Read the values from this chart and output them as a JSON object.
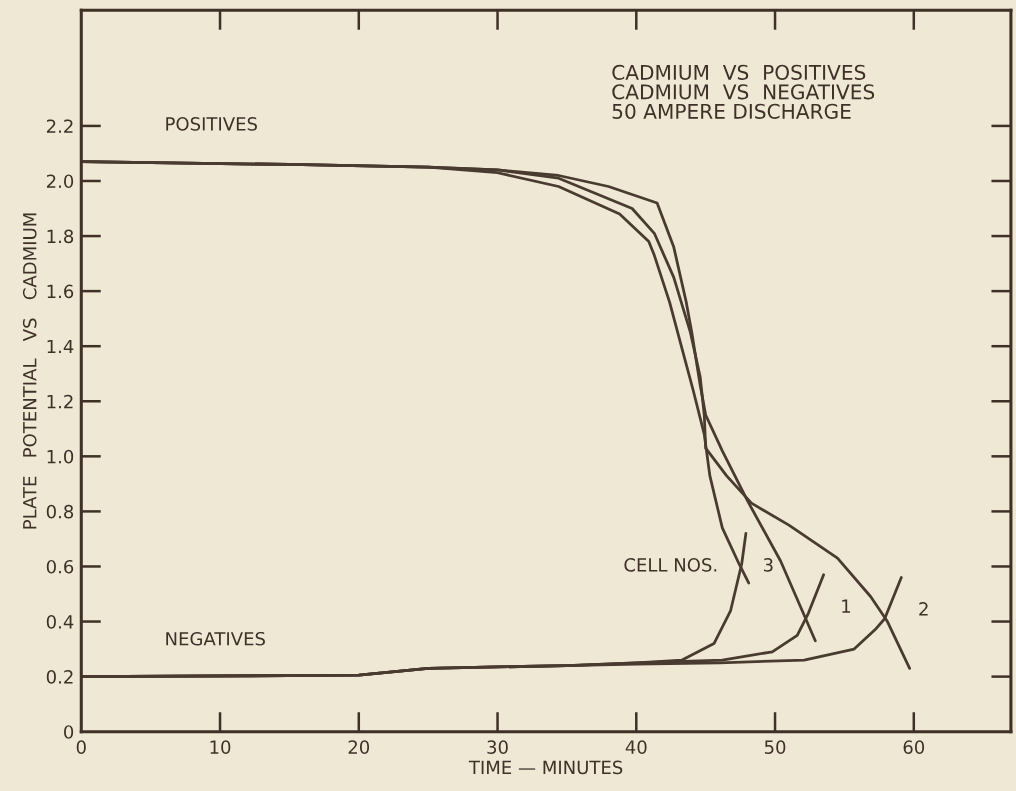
{
  "chart_data": {
    "type": "line",
    "title": "CADMIUM  VS  POSITIVES\nCADMIUM  VS  NEGATIVES\n50 AMPERE DISCHARGE",
    "xlabel": "TIME — MINUTES",
    "ylabel": "PLATE   POTENTIAL   VS   CADMIUM",
    "legend_title": "CELL NOS.",
    "xlim": [
      0,
      67
    ],
    "ylim": [
      0,
      2.62
    ],
    "xticks": [
      0,
      10,
      20,
      30,
      40,
      50,
      60
    ],
    "yticks": [
      0,
      0.2,
      0.4,
      0.6,
      0.8,
      {
        "value": 1.0,
        "label": "1.0"
      },
      1.2,
      1.4,
      1.6,
      1.8,
      {
        "value": 2.0,
        "label": "2.0"
      },
      2.2
    ],
    "grid": false,
    "legend": false,
    "marker": "none",
    "line_style": "solid",
    "annotations": [
      {
        "text": "POSITIVES",
        "x": 6,
        "y": 2.07
      },
      {
        "text": "NEGATIVES",
        "x": 6,
        "y": 0.2
      }
    ],
    "series": [
      {
        "color": "#4a3b30",
        "x": [
          0,
          15,
          25,
          30,
          34.4,
          38,
          41.5,
          42.7,
          43.6,
          44.0,
          44.6,
          45.0,
          46.2,
          48.0,
          50.4,
          52.9
        ],
        "values": [
          2.07,
          2.06,
          2.05,
          2.04,
          2.02,
          1.98,
          1.92,
          1.76,
          1.56,
          1.45,
          1.26,
          1.15,
          1.02,
          0.84,
          0.62,
          0.33
        ]
      },
      {
        "color": "#4a3b30",
        "x": [
          0,
          15,
          25,
          30,
          34.4,
          39.7,
          41.3,
          42.7,
          43.9,
          44.6,
          44.9,
          45.0,
          46.5,
          48.3,
          51.0,
          54.5,
          56.9,
          58.1,
          59.7
        ],
        "values": [
          2.07,
          2.06,
          2.05,
          2.04,
          2.01,
          1.9,
          1.81,
          1.65,
          1.45,
          1.29,
          1.15,
          1.03,
          0.93,
          0.83,
          0.75,
          0.63,
          0.49,
          0.4,
          0.23
        ]
      },
      {
        "color": "#4a3b30",
        "x": [
          0,
          15,
          25,
          30,
          34.4,
          38.8,
          40.9,
          41.3,
          42.4,
          43.3,
          44.1,
          44.9,
          45.3,
          46.2,
          47.4,
          48.1
        ],
        "values": [
          2.07,
          2.06,
          2.05,
          2.03,
          1.98,
          1.88,
          1.78,
          1.73,
          1.56,
          1.39,
          1.24,
          1.08,
          0.93,
          0.74,
          0.61,
          0.54
        ]
      },
      {
        "name": "3",
        "color": "#4a3b30",
        "x": [
          0,
          20,
          25,
          30,
          35,
          40,
          43.3,
          45.6,
          46.8,
          47.6,
          47.9
        ],
        "values": [
          0.2,
          0.205,
          0.23,
          0.235,
          0.24,
          0.25,
          0.26,
          0.32,
          0.44,
          0.61,
          0.72
        ]
      },
      {
        "name": "1",
        "color": "#4a3b30",
        "x": [
          0,
          20,
          25,
          30,
          35,
          40,
          46.2,
          49.8,
          51.6,
          52.4,
          53.5
        ],
        "values": [
          0.2,
          0.205,
          0.23,
          0.235,
          0.24,
          0.25,
          0.26,
          0.29,
          0.35,
          0.43,
          0.57
        ]
      },
      {
        "name": "2",
        "color": "#4a3b30",
        "x": [
          0,
          20,
          25,
          30,
          35,
          40,
          46,
          52.1,
          55.7,
          57.2,
          57.9,
          59.1
        ],
        "values": [
          0.2,
          0.205,
          0.23,
          0.235,
          0.24,
          0.245,
          0.25,
          0.26,
          0.3,
          0.37,
          0.41,
          0.56
        ]
      }
    ]
  }
}
